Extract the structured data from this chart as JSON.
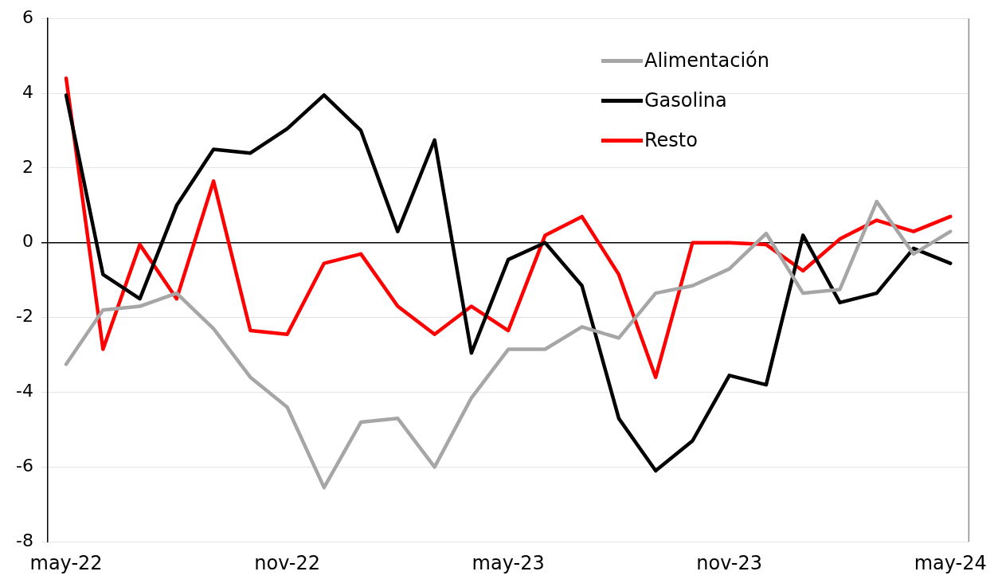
{
  "chart_data": {
    "type": "line",
    "categories": [
      "may-22",
      null,
      null,
      null,
      null,
      null,
      "nov-22",
      null,
      null,
      null,
      null,
      null,
      "may-23",
      null,
      null,
      null,
      null,
      null,
      "nov-23",
      null,
      null,
      null,
      null,
      null,
      "may-24"
    ],
    "series": [
      {
        "name": "Alimentación",
        "color": "#a6a6a6",
        "values": [
          -3.25,
          -1.8,
          -1.7,
          -1.35,
          -2.3,
          -3.6,
          -4.4,
          -6.55,
          -4.8,
          -4.7,
          -6.0,
          -4.15,
          -2.85,
          -2.85,
          -2.25,
          -2.55,
          -1.35,
          -1.15,
          -0.7,
          0.25,
          -1.35,
          -1.25,
          1.1,
          -0.3,
          0.3
        ]
      },
      {
        "name": "Gasolina",
        "color": "#000000",
        "values": [
          3.95,
          -0.85,
          -1.5,
          1.0,
          2.5,
          2.4,
          3.05,
          3.95,
          3.0,
          0.3,
          2.75,
          -2.95,
          -0.45,
          0.0,
          -1.15,
          -4.7,
          -6.1,
          -5.3,
          -3.55,
          -3.8,
          0.2,
          -1.6,
          -1.35,
          -0.15,
          -0.55
        ]
      },
      {
        "name": "Resto",
        "color": "#ff0000",
        "values": [
          4.4,
          -2.85,
          -0.05,
          -1.5,
          1.65,
          -2.35,
          -2.45,
          -0.55,
          -0.3,
          -1.7,
          -2.45,
          -1.7,
          -2.35,
          0.2,
          0.7,
          -0.85,
          -3.6,
          0.0,
          0.0,
          -0.05,
          -0.75,
          0.1,
          0.6,
          0.3,
          0.7
        ]
      }
    ],
    "ylim": [
      -8,
      6
    ],
    "yticks": [
      -8,
      -6,
      -4,
      -2,
      0,
      2,
      4,
      6
    ],
    "grid": "y",
    "legend": "top right",
    "marker": "none",
    "line_style": "solid"
  }
}
